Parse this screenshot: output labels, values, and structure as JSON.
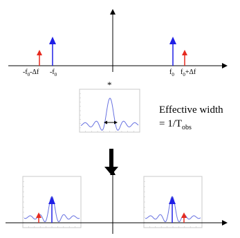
{
  "spectrum_top": {
    "labels": {
      "neg_f0_minus": {
        "main": "-f",
        "sub": "0",
        "tail": "-Δf"
      },
      "neg_f0": {
        "main": "-f",
        "sub": "0",
        "tail": ""
      },
      "f0": {
        "main": "f",
        "sub": "0",
        "tail": ""
      },
      "f0_plus": {
        "main": "f",
        "sub": "0",
        "tail": "+Δf"
      }
    }
  },
  "convolution_symbol": "*",
  "window": {
    "effective_width_line1": "Effective width",
    "effective_width_line2_prefix": "= 1/T",
    "effective_width_line2_sub": "obs"
  },
  "colors": {
    "blue": "#1f1fe6",
    "red": "#e62a1f",
    "sinc": "#6670e0",
    "frame": "#c8c8c8",
    "axis": "#000000"
  },
  "icons": {
    "result_arrow": "down-arrow-icon"
  }
}
